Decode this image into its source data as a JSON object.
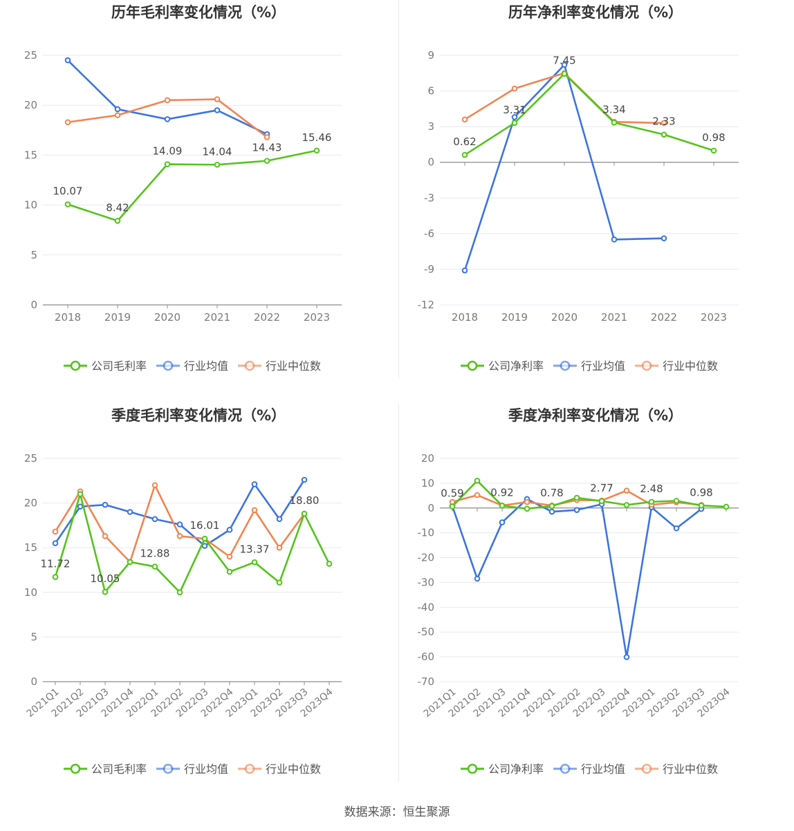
{
  "source": "数据来源：恒生聚源",
  "legend_labels": {
    "company_gross": "公司毛利率",
    "company_net": "公司净利率",
    "industry_avg": "行业均值",
    "industry_median": "行业中位数"
  },
  "colors": {
    "company": "#52c41a",
    "industry_avg": "#3b74e0",
    "industry_median": "#f2844f",
    "grid": "#e6e9f2",
    "axis": "#8c8c8c",
    "tick": "#7a7a7a",
    "title": "#333333"
  },
  "chart_data": [
    {
      "id": "annual-gross",
      "type": "line",
      "title": "历年毛利率变化情况（%）",
      "categories": [
        "2018",
        "2019",
        "2020",
        "2021",
        "2022",
        "2023"
      ],
      "ylim": [
        0,
        25
      ],
      "yticks": [
        0,
        5,
        10,
        15,
        20,
        25
      ],
      "rotate_x": false,
      "series": [
        {
          "name": "公司毛利率",
          "key": "company",
          "values": [
            10.07,
            8.42,
            14.09,
            14.04,
            14.43,
            15.46
          ],
          "labels": [
            "10.07",
            "8.42",
            "14.09",
            "14.04",
            "14.43",
            "15.46"
          ]
        },
        {
          "name": "行业均值",
          "key": "industry_avg",
          "values": [
            24.5,
            19.6,
            18.6,
            19.5,
            17.1,
            null
          ]
        },
        {
          "name": "行业中位数",
          "key": "industry_median",
          "values": [
            18.3,
            19.0,
            20.5,
            20.6,
            16.8,
            null
          ]
        }
      ]
    },
    {
      "id": "annual-net",
      "type": "line",
      "title": "历年净利率变化情况（%）",
      "categories": [
        "2018",
        "2019",
        "2020",
        "2021",
        "2022",
        "2023"
      ],
      "ylim": [
        -12,
        9
      ],
      "yticks": [
        -12,
        -9,
        -6,
        -3,
        0,
        3,
        6,
        9
      ],
      "rotate_x": false,
      "series": [
        {
          "name": "公司净利率",
          "key": "company",
          "values": [
            0.62,
            3.31,
            7.45,
            3.34,
            2.33,
            0.98
          ],
          "labels": [
            "0.62",
            "3.31",
            "7.45",
            "3.34",
            "2.33",
            "0.98"
          ]
        },
        {
          "name": "行业均值",
          "key": "industry_avg",
          "values": [
            -9.1,
            3.8,
            8.2,
            -6.5,
            -6.4,
            null
          ]
        },
        {
          "name": "行业中位数",
          "key": "industry_median",
          "values": [
            3.6,
            6.2,
            7.5,
            3.4,
            3.3,
            null
          ]
        }
      ]
    },
    {
      "id": "quarterly-gross",
      "type": "line",
      "title": "季度毛利率变化情况（%）",
      "categories": [
        "2021Q1",
        "2021Q2",
        "2021Q3",
        "2021Q4",
        "2022Q1",
        "2022Q2",
        "2022Q3",
        "2022Q4",
        "2023Q1",
        "2023Q2",
        "2023Q3",
        "2023Q4"
      ],
      "ylim": [
        0,
        25
      ],
      "yticks": [
        0,
        5,
        10,
        15,
        20,
        25
      ],
      "rotate_x": true,
      "series": [
        {
          "name": "公司毛利率",
          "key": "company",
          "values": [
            11.72,
            21.0,
            10.05,
            13.4,
            12.88,
            10.0,
            16.01,
            12.3,
            13.37,
            11.1,
            18.8,
            13.2
          ],
          "labels": [
            "11.72",
            "",
            "10.05",
            "",
            "12.88",
            "",
            "16.01",
            "",
            "13.37",
            "",
            "18.80",
            ""
          ]
        },
        {
          "name": "行业均值",
          "key": "industry_avg",
          "values": [
            15.5,
            19.6,
            19.8,
            19.0,
            18.2,
            17.6,
            15.2,
            17.0,
            22.1,
            18.2,
            22.6,
            null
          ]
        },
        {
          "name": "行业中位数",
          "key": "industry_median",
          "values": [
            16.8,
            21.3,
            16.3,
            13.4,
            22.0,
            16.3,
            16.0,
            14.0,
            19.2,
            15.0,
            18.8,
            null
          ]
        }
      ]
    },
    {
      "id": "quarterly-net",
      "type": "line",
      "title": "季度净利率变化情况（%）",
      "categories": [
        "2021Q1",
        "2021Q2",
        "2021Q3",
        "2021Q4",
        "2022Q1",
        "2022Q2",
        "2022Q3",
        "2022Q4",
        "2023Q1",
        "2023Q2",
        "2023Q3",
        "2023Q4"
      ],
      "ylim": [
        -70,
        20
      ],
      "yticks": [
        -70,
        -60,
        -50,
        -40,
        -30,
        -20,
        -10,
        0,
        10,
        20
      ],
      "rotate_x": true,
      "series": [
        {
          "name": "公司净利率",
          "key": "company",
          "values": [
            0.59,
            11.0,
            0.92,
            -0.3,
            0.78,
            4.1,
            2.77,
            1.2,
            2.48,
            2.9,
            0.98,
            0.5
          ],
          "labels": [
            "0.59",
            "",
            "0.92",
            "",
            "0.78",
            "",
            "2.77",
            "",
            "2.48",
            "",
            "0.98",
            ""
          ]
        },
        {
          "name": "行业均值",
          "key": "industry_avg",
          "values": [
            0.8,
            -28.5,
            -5.8,
            3.6,
            -1.5,
            -0.8,
            1.5,
            -60.1,
            0.3,
            -8.2,
            -0.4,
            null
          ]
        },
        {
          "name": "行业中位数",
          "key": "industry_median",
          "values": [
            2.4,
            5.2,
            1.0,
            2.4,
            1.0,
            3.2,
            3.0,
            7.0,
            1.3,
            2.3,
            1.2,
            null
          ]
        }
      ]
    }
  ]
}
